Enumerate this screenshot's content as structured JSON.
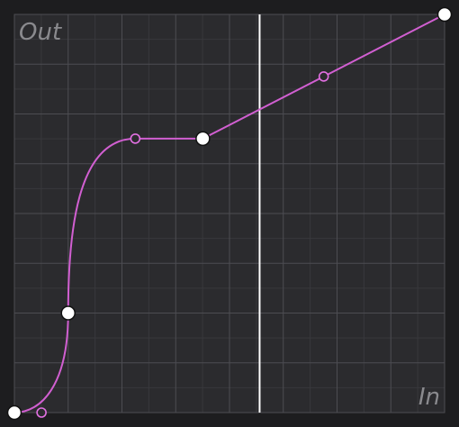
{
  "labels": {
    "out_axis": "Out",
    "in_axis": "In"
  },
  "colors": {
    "background": "#1d1d1f",
    "plot_background": "#2b2b2e",
    "grid_major": "#4d4d52",
    "grid_minor": "#38383c",
    "curve": "#d15fd1",
    "point_fill": "#ffffff",
    "point_stroke": "#111111",
    "handle_fill": "#2b2b2e",
    "handle_stroke": "#e270e2",
    "playhead": "#ffffff"
  },
  "curve": {
    "input_range": [
      0,
      1
    ],
    "output_range": [
      0,
      1
    ],
    "playhead_input": 0.57,
    "control_points": [
      {
        "in": 0.0,
        "out": 0.0
      },
      {
        "in": 0.125,
        "out": 0.25
      },
      {
        "in": 0.438,
        "out": 0.688
      },
      {
        "in": 1.0,
        "out": 1.0
      }
    ],
    "tangent_handles": [
      {
        "in": 0.063,
        "out": 0.0
      },
      {
        "in": 0.281,
        "out": 0.688
      },
      {
        "in": 0.719,
        "out": 0.844
      }
    ]
  }
}
